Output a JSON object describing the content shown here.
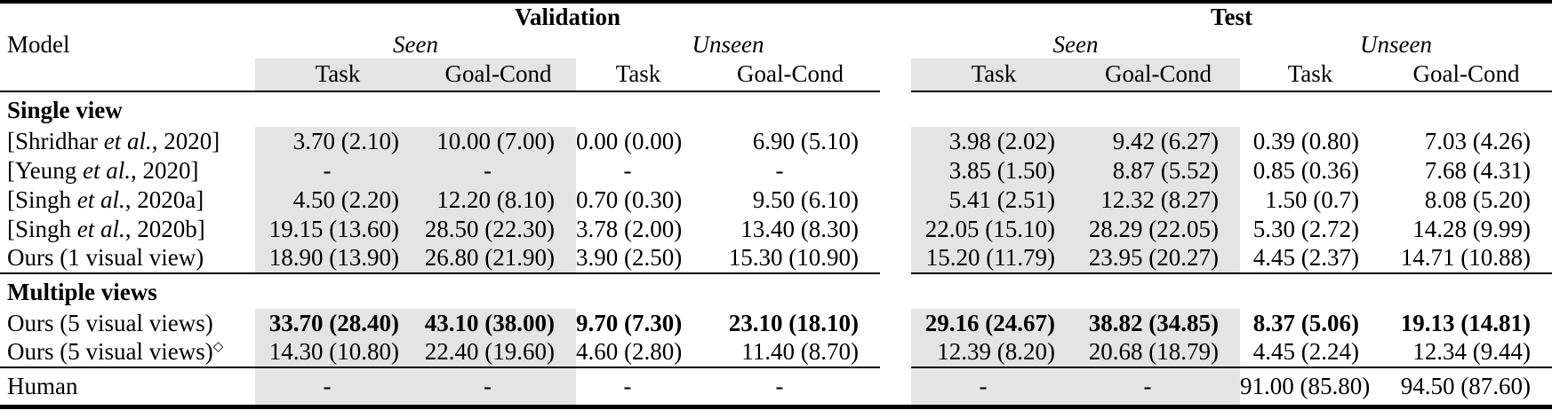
{
  "table": {
    "colors": {
      "highlight": "#e4e4e4",
      "rule": "#000000"
    },
    "groups": [
      {
        "label": "Validation"
      },
      {
        "label": "Test"
      }
    ],
    "model_header": "Model",
    "subheaders": [
      "Seen",
      "Unseen",
      "Seen",
      "Unseen"
    ],
    "col_headers": [
      "Task",
      "Goal-Cond",
      "Task",
      "Goal-Cond",
      "Task",
      "Goal-Cond",
      "Task",
      "Goal-Cond"
    ],
    "sections": [
      {
        "title": "Single view",
        "rows": [
          {
            "label_pre": "[Shridhar ",
            "label_italic": "et al.",
            "label_post": ", 2020]",
            "bold": false,
            "values": [
              "3.70 (2.10)",
              "10.00 (7.00)",
              "0.00 (0.00)",
              "6.90 (5.10)",
              "3.98 (2.02)",
              "9.42 (6.27)",
              "0.39 (0.80)",
              "7.03 (4.26)"
            ]
          },
          {
            "label_pre": "[Yeung ",
            "label_italic": "et al.",
            "label_post": ", 2020]",
            "bold": false,
            "values": [
              "-",
              "-",
              "-",
              "-",
              "3.85 (1.50)",
              "8.87 (5.52)",
              "0.85 (0.36)",
              "7.68 (4.31)"
            ]
          },
          {
            "label_pre": "[Singh ",
            "label_italic": "et al.",
            "label_post": ", 2020a]",
            "bold": false,
            "values": [
              "4.50 (2.20)",
              "12.20 (8.10)",
              "0.70 (0.30)",
              "9.50 (6.10)",
              "5.41 (2.51)",
              "12.32 (8.27)",
              "1.50 (0.7)",
              "8.08 (5.20)"
            ]
          },
          {
            "label_pre": "[Singh ",
            "label_italic": "et al.",
            "label_post": ", 2020b]",
            "bold": false,
            "values": [
              "19.15 (13.60)",
              "28.50 (22.30)",
              "3.78 (2.00)",
              "13.40 (8.30)",
              "22.05 (15.10)",
              "28.29 (22.05)",
              "5.30 (2.72)",
              "14.28 (9.99)"
            ]
          },
          {
            "label_pre": "Ours (1 visual view)",
            "bold": false,
            "values": [
              "18.90 (13.90)",
              "26.80 (21.90)",
              "3.90 (2.50)",
              "15.30 (10.90)",
              "15.20 (11.79)",
              "23.95 (20.27)",
              "4.45 (2.37)",
              "14.71 (10.88)"
            ]
          }
        ]
      },
      {
        "title": "Multiple views",
        "rows": [
          {
            "label_pre": "Ours (5 visual views)",
            "bold": true,
            "values": [
              "33.70 (28.40)",
              "43.10 (38.00)",
              "9.70 (7.30)",
              "23.10 (18.10)",
              "29.16 (24.67)",
              "38.82 (34.85)",
              "8.37 (5.06)",
              "19.13 (14.81)"
            ]
          },
          {
            "label_pre": "Ours (5 visual views)",
            "label_sup": "◇",
            "bold": false,
            "values": [
              "14.30 (10.80)",
              "22.40 (19.60)",
              "4.60 (2.80)",
              "11.40 (8.70)",
              "12.39 (8.20)",
              "20.68 (18.79)",
              "4.45 (2.24)",
              "12.34 (9.44)"
            ]
          }
        ]
      },
      {
        "title": "",
        "rows": [
          {
            "label_pre": "Human",
            "bold": false,
            "values": [
              "-",
              "-",
              "-",
              "-",
              "-",
              "-",
              "91.00 (85.80)",
              "94.50 (87.60)"
            ]
          }
        ]
      }
    ]
  }
}
